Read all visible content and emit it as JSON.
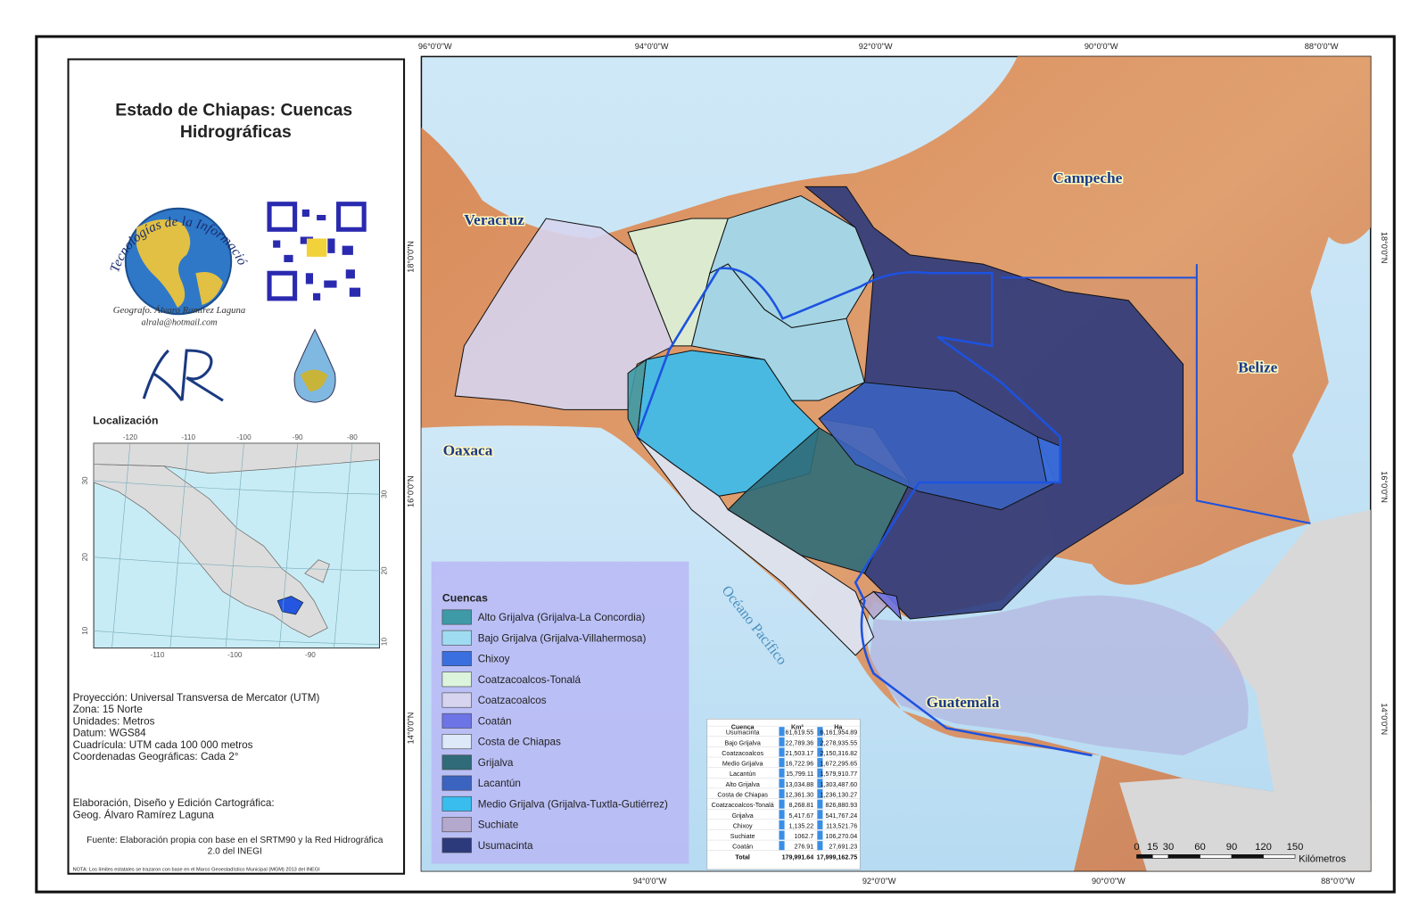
{
  "header": {
    "title_line1": "Estado de Chiapas: Cuencas",
    "title_line2": "Hidrográficas"
  },
  "logo": {
    "arc_text": "Tecnologías de la Información Geográfica",
    "author": "Geografo. Álvaro Ramírez Laguna",
    "email": "alrala@hotmail.com"
  },
  "location": {
    "title": "Localización",
    "top_ticks": [
      -120,
      -110,
      -100,
      -90,
      -80
    ],
    "bottom_ticks": [
      -110,
      -100,
      -90
    ],
    "left_ticks": [
      30,
      20,
      10
    ],
    "right_ticks": [
      30,
      20,
      10
    ]
  },
  "info": [
    "Proyección: Universal Transversa de Mercator (UTM)",
    "Zona: 15 Norte",
    "Unidades: Metros",
    "Datum: WGS84",
    "Cuadrícula: UTM cada 100 000 metros",
    "Coordenadas Geográficas: Cada 2°"
  ],
  "credits": [
    "Elaboración, Diseño y Edición Cartográfica:",
    "Geog. Álvaro Ramírez Laguna"
  ],
  "source": [
    "Fuente: Elaboración propia con base en el SRTM90 y la Red Hidrográfica",
    "2.0 del INEGI"
  ],
  "note": "NOTA: Los límites estatales se trazaron con base en el Marco Geoestadístico Municipal (MGM) 2013 del INEGI",
  "map": {
    "top_coords": [
      "96°0'0\"W",
      "94°0'0\"W",
      "92°0'0\"W",
      "90°0'0\"W",
      "88°0'0\"W"
    ],
    "bottom_coords": [
      "94°0'0\"W",
      "92°0'0\"W",
      "90°0'0\"W",
      "88°0'0\"W"
    ],
    "left_coords": [
      "18°0'0\"N",
      "16°0'0\"N",
      "14°0'0\"N"
    ],
    "right_coords": [
      "18°0'0\"N",
      "16°0'0\"N",
      "14°0'0\"N"
    ],
    "places": [
      "Veracruz",
      "Campeche",
      "Oaxaca",
      "Belize",
      "Guatemala",
      "Océano Pacífico"
    ]
  },
  "legend": {
    "title": "Cuencas",
    "items": [
      {
        "name": "Alto Grijalva (Grijalva-La Concordia)",
        "color": "#3d9aa6"
      },
      {
        "name": "Bajo Grijalva (Grijalva-Villahermosa)",
        "color": "#9fdcf2"
      },
      {
        "name": "Chixoy",
        "color": "#3a6fe0"
      },
      {
        "name": "Coatzacoalcos-Tonalá",
        "color": "#dcf4dc"
      },
      {
        "name": "Coatzacoalcos",
        "color": "#d6d4ee"
      },
      {
        "name": "Coatán",
        "color": "#6c74e6"
      },
      {
        "name": "Costa de Chiapas",
        "color": "#dde8f8"
      },
      {
        "name": "Grijalva",
        "color": "#2f6b78"
      },
      {
        "name": "Lacantún",
        "color": "#3b63c0"
      },
      {
        "name": "Medio Grijalva (Grijalva-Tuxtla-Gutiérrez)",
        "color": "#38bdee"
      },
      {
        "name": "Suchiate",
        "color": "#b4a8cc"
      },
      {
        "name": "Usumacinta",
        "color": "#2c3a7c"
      }
    ]
  },
  "table": {
    "header": [
      "Cuenca",
      "Km²",
      "Ha"
    ],
    "rows": [
      [
        "Usumacinta",
        "61,619.55",
        "6,161,954.89"
      ],
      [
        "Bajo Grijalva",
        "22,789.36",
        "2,278,935.55"
      ],
      [
        "Coatzacoalcos",
        "21,503.17",
        "2,150,316.82"
      ],
      [
        "Medio Grijalva",
        "16,722.96",
        "1,672,295.65"
      ],
      [
        "Lacantún",
        "15,799.11",
        "1,579,910.77"
      ],
      [
        "Alto Grijalva",
        "13,034.88",
        "1,303,487.60"
      ],
      [
        "Costa de Chiapas",
        "12,361.30",
        "1,236,130.27"
      ],
      [
        "Coatzacoalcos-Tonalá",
        "8,268.81",
        "826,880.93"
      ],
      [
        "Grijalva",
        "5,417.67",
        "541,767.24"
      ],
      [
        "Chixoy",
        "1,135.22",
        "113,521.76"
      ],
      [
        "Suchiate",
        "1062.7",
        "106,270.04"
      ],
      [
        "Coatán",
        "276.91",
        "27,691.23"
      ],
      [
        "Total",
        "179,991.64",
        "17,999,162.75"
      ]
    ]
  },
  "scale": {
    "ticks": [
      0,
      15,
      30,
      60,
      90,
      120,
      150
    ],
    "unit": "Kilómetros"
  }
}
